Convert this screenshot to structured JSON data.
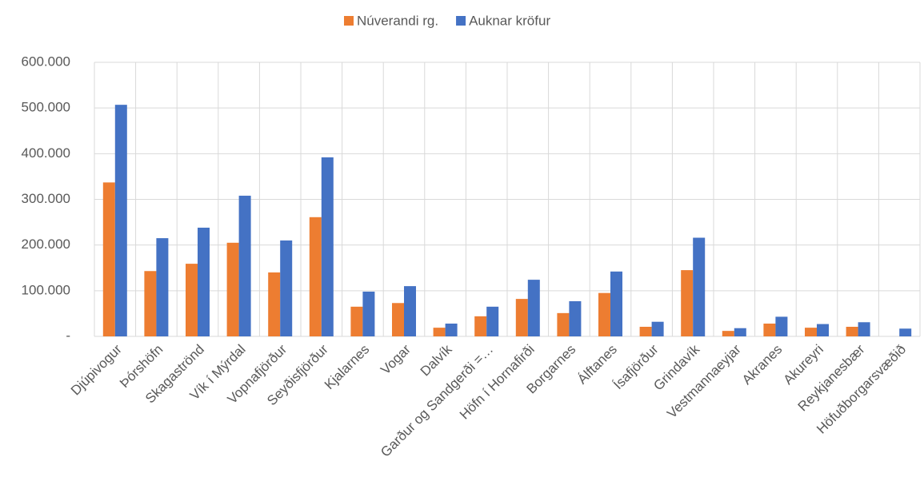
{
  "chart_data": {
    "type": "bar",
    "categories": [
      "Djúpivogur",
      "Þórshöfn",
      "Skagaströnd",
      "Vík í Mýrdal",
      "Vopnafjörður",
      "Seyðisfjörður",
      "Kjalarnes",
      "Vogar",
      "Dalvík",
      "Garður og Sandgerði =…",
      "Höfn í Hornafirði",
      "Borgarnes",
      "Álftanes",
      "Ísafjörður",
      "Grindavík",
      "Vestmannaeyjar",
      "Akranes",
      "Akureyri",
      "Reykjanesbær",
      "Höfuðborgarsvæðið"
    ],
    "series": [
      {
        "name": "Núverandi rg.",
        "color": "#ed7d31",
        "values": [
          337000,
          143000,
          159000,
          205000,
          140000,
          261000,
          65000,
          73000,
          19000,
          44000,
          82000,
          51000,
          95000,
          21000,
          145000,
          12000,
          28000,
          19000,
          21000,
          0
        ]
      },
      {
        "name": "Auknar kröfur",
        "color": "#4472c4",
        "values": [
          507000,
          215000,
          238000,
          308000,
          210000,
          392000,
          98000,
          110000,
          28000,
          65000,
          124000,
          77000,
          142000,
          32000,
          216000,
          18000,
          43000,
          27000,
          31000,
          17000
        ]
      }
    ],
    "ylim": [
      0,
      600000
    ],
    "yticks": [
      {
        "value": 0,
        "label": "-"
      },
      {
        "value": 100000,
        "label": "100.000"
      },
      {
        "value": 200000,
        "label": "200.000"
      },
      {
        "value": 300000,
        "label": "300.000"
      },
      {
        "value": 400000,
        "label": "400.000"
      },
      {
        "value": 500000,
        "label": "500.000"
      },
      {
        "value": 600000,
        "label": "600.000"
      }
    ],
    "grid": true,
    "legend": "top"
  }
}
